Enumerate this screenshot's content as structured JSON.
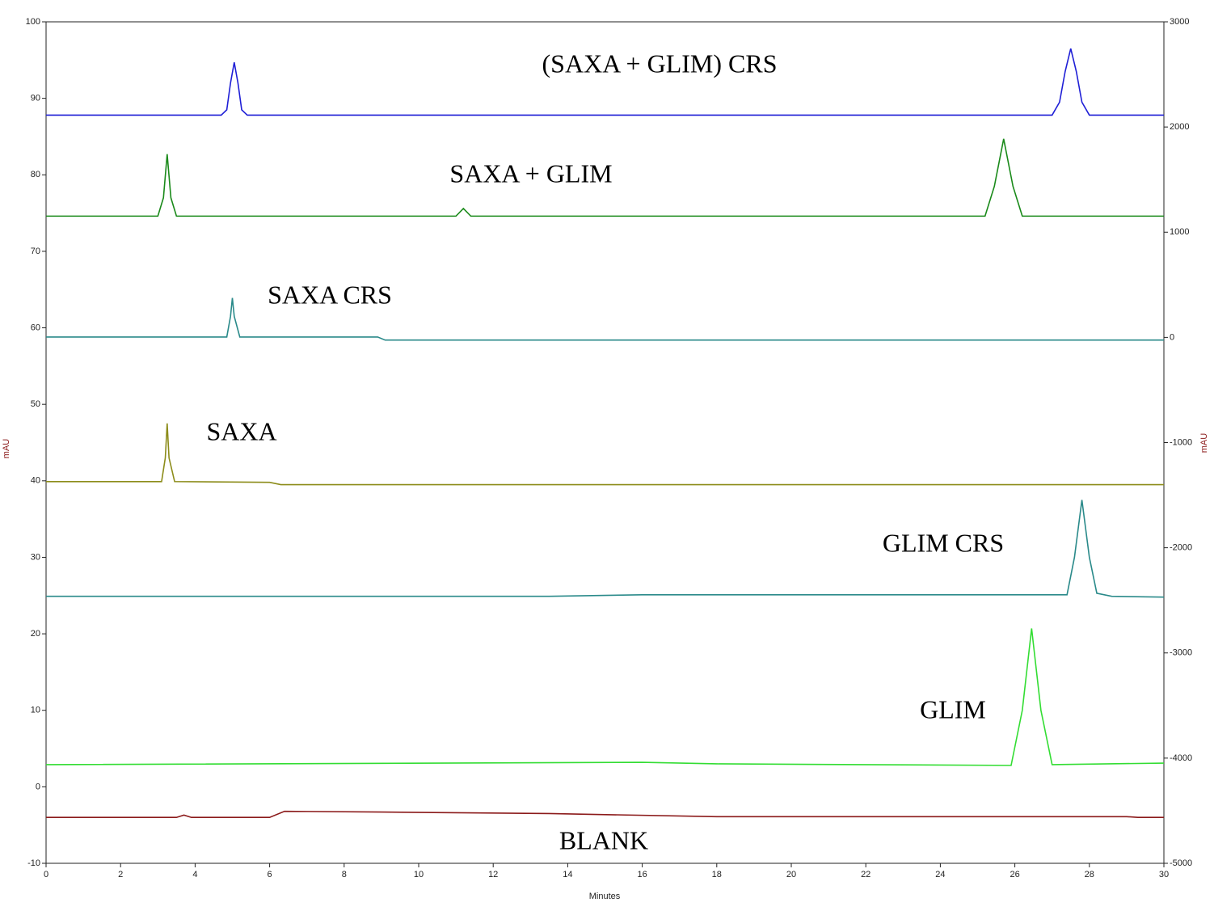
{
  "chart_data": {
    "type": "line",
    "x_label": "Minutes",
    "y_label": "mAU",
    "y2_label": "mAU",
    "xlim": [
      0,
      30
    ],
    "xticks": [
      0,
      2,
      4,
      6,
      8,
      10,
      12,
      14,
      16,
      18,
      20,
      22,
      24,
      26,
      28,
      30
    ],
    "ylim": [
      -10,
      100
    ],
    "yticks": [
      -10,
      0,
      10,
      20,
      30,
      40,
      50,
      60,
      70,
      80,
      90,
      100
    ],
    "y2lim": [
      -5000,
      3000
    ],
    "y2ticks": [
      -5000,
      -4000,
      -3000,
      -2000,
      -1000,
      0,
      1000,
      2000,
      3000
    ],
    "series": [
      {
        "name": "(SAXA + GLIM) CRS",
        "color": "#1f1fd6",
        "x": [
          0,
          4.7,
          4.85,
          4.95,
          5.05,
          5.15,
          5.25,
          5.4,
          27.0,
          27.2,
          27.35,
          27.5,
          27.65,
          27.8,
          28.0,
          30
        ],
        "values": [
          87.8,
          87.8,
          88.5,
          92,
          94.7,
          92,
          88.5,
          87.8,
          87.8,
          89.5,
          93.5,
          96.5,
          93.5,
          89.5,
          87.8,
          87.8
        ]
      },
      {
        "name": "SAXA + GLIM",
        "color": "#1a8a1a",
        "x": [
          0,
          3.0,
          3.15,
          3.25,
          3.35,
          3.5,
          11.0,
          11.2,
          11.4,
          25.2,
          25.45,
          25.7,
          25.95,
          26.2,
          30
        ],
        "values": [
          74.6,
          74.6,
          77,
          82.7,
          77,
          74.6,
          74.6,
          75.6,
          74.6,
          74.6,
          78.5,
          84.7,
          78.5,
          74.6,
          74.6
        ]
      },
      {
        "name": "SAXA CRS",
        "color": "#2a8a8a",
        "x": [
          0,
          4.85,
          4.95,
          5.0,
          5.05,
          5.2,
          8.9,
          9.1,
          30
        ],
        "values": [
          58.8,
          58.8,
          61.5,
          63.9,
          61.5,
          58.8,
          58.8,
          58.4,
          58.4
        ]
      },
      {
        "name": "SAXA",
        "color": "#8c8c1a",
        "x": [
          0,
          3.1,
          3.2,
          3.25,
          3.3,
          3.45,
          6.0,
          6.3,
          30
        ],
        "values": [
          39.9,
          39.9,
          43,
          47.5,
          43,
          39.9,
          39.8,
          39.5,
          39.5
        ]
      },
      {
        "name": "GLIM CRS",
        "color": "#2a8a8a",
        "x": [
          0,
          13.5,
          16,
          27.4,
          27.6,
          27.8,
          28.0,
          28.2,
          28.6,
          30
        ],
        "values": [
          24.9,
          24.9,
          25.1,
          25.1,
          30,
          37.5,
          30,
          25.3,
          24.9,
          24.8
        ]
      },
      {
        "name": "GLIM",
        "color": "#33dd33",
        "x": [
          0,
          16,
          18,
          25.9,
          26.2,
          26.45,
          26.7,
          27.0,
          30
        ],
        "values": [
          2.9,
          3.2,
          3.0,
          2.8,
          10,
          20.7,
          10,
          2.9,
          3.1
        ]
      },
      {
        "name": "BLANK",
        "color": "#8b1a1a",
        "x": [
          0,
          3.5,
          3.7,
          3.9,
          6.0,
          6.4,
          9,
          13.5,
          18,
          29,
          29.3,
          30
        ],
        "values": [
          -4.0,
          -4.0,
          -3.7,
          -4.0,
          -4.0,
          -3.2,
          -3.3,
          -3.5,
          -3.9,
          -3.9,
          -4.0,
          -4.0
        ]
      }
    ]
  }
}
